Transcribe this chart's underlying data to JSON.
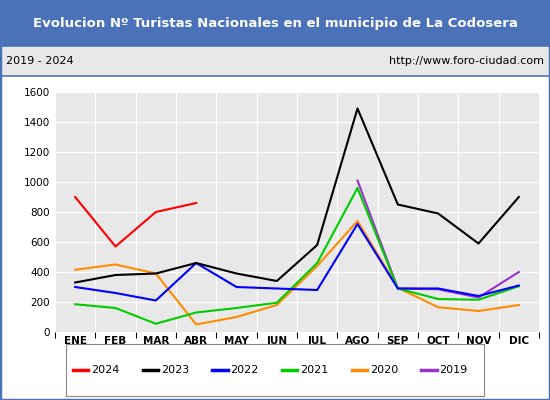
{
  "title": "Evolucion Nº Turistas Nacionales en el municipio de La Codosera",
  "subtitle_left": "2019 - 2024",
  "subtitle_right": "http://www.foro-ciudad.com",
  "title_bg_color": "#4b72b8",
  "title_text_color": "#ffffff",
  "subtitle_bg_color": "#e8e8e8",
  "plot_bg_color": "#e8e8e8",
  "months": [
    "ENE",
    "FEB",
    "MAR",
    "ABR",
    "MAY",
    "JUN",
    "JUL",
    "AGO",
    "SEP",
    "OCT",
    "NOV",
    "DIC"
  ],
  "series": {
    "2024": {
      "color": "#ff0000",
      "data": [
        900,
        570,
        800,
        860,
        null,
        null,
        null,
        null,
        null,
        null,
        null,
        null
      ]
    },
    "2023": {
      "color": "#000000",
      "data": [
        330,
        380,
        390,
        460,
        390,
        340,
        580,
        1490,
        850,
        790,
        590,
        900
      ]
    },
    "2022": {
      "color": "#0000ff",
      "data": [
        300,
        260,
        210,
        460,
        300,
        290,
        280,
        720,
        290,
        290,
        240,
        310
      ]
    },
    "2021": {
      "color": "#00cc00",
      "data": [
        185,
        160,
        55,
        130,
        160,
        195,
        460,
        960,
        290,
        220,
        215,
        305
      ]
    },
    "2020": {
      "color": "#ff8c00",
      "data": [
        415,
        450,
        390,
        50,
        100,
        180,
        440,
        740,
        295,
        165,
        140,
        180
      ]
    },
    "2019": {
      "color": "#9932cc",
      "data": [
        null,
        null,
        null,
        null,
        null,
        null,
        null,
        1010,
        290,
        285,
        230,
        400
      ]
    }
  },
  "ylim": [
    0,
    1600
  ],
  "yticks": [
    0,
    200,
    400,
    600,
    800,
    1000,
    1200,
    1400,
    1600
  ],
  "legend_order": [
    "2024",
    "2023",
    "2022",
    "2021",
    "2020",
    "2019"
  ],
  "border_color": "#4b72b8",
  "grid_color": "#ffffff"
}
